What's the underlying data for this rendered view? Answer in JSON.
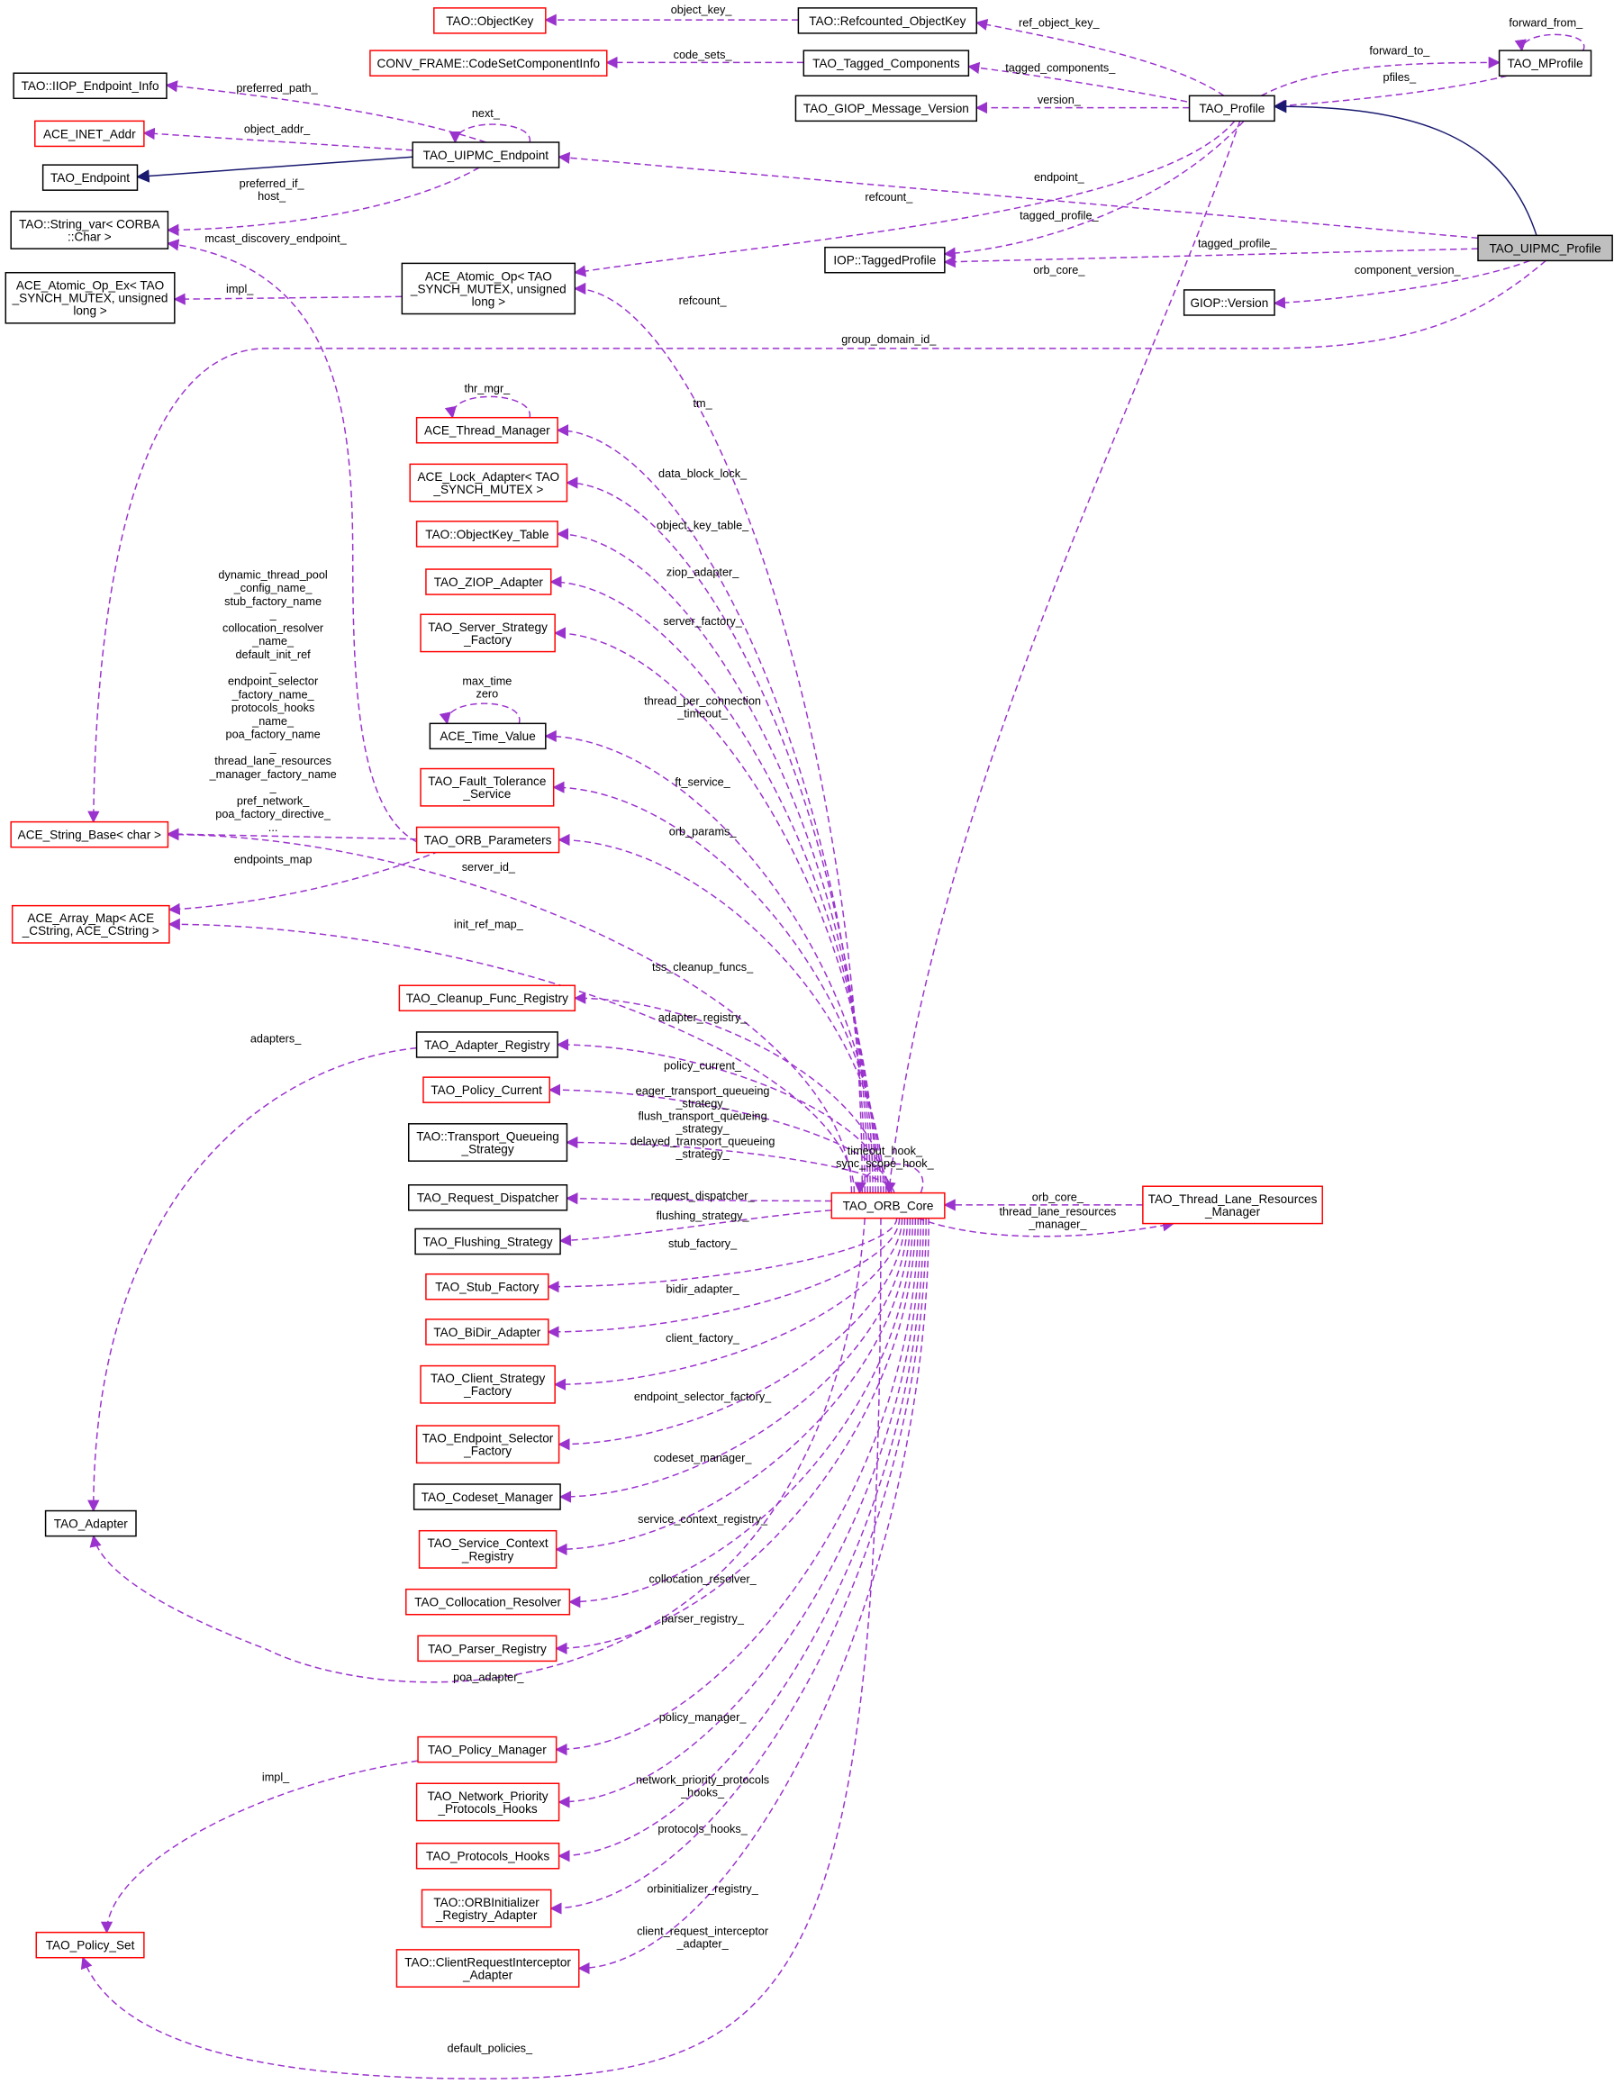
{
  "colors": {
    "red_border": "#ff0000",
    "black_border": "#000000",
    "focus_fill": "#bfbfbf",
    "member_edge": "#9a32cd",
    "inherit_edge": "#191970"
  },
  "nodes": [
    {
      "id": "objectkey",
      "lines": [
        "TAO::ObjectKey"
      ],
      "style": "red"
    },
    {
      "id": "refcounted_objectkey",
      "lines": [
        "TAO::Refcounted_ObjectKey"
      ],
      "style": "black"
    },
    {
      "id": "codeset_info",
      "lines": [
        "CONV_FRAME::CodeSetComponentInfo"
      ],
      "style": "red"
    },
    {
      "id": "tagged_components",
      "lines": [
        "TAO_Tagged_Components"
      ],
      "style": "black"
    },
    {
      "id": "iiop_endpoint_info",
      "lines": [
        "TAO::IIOP_Endpoint_Info"
      ],
      "style": "black"
    },
    {
      "id": "giop_message_version",
      "lines": [
        "TAO_GIOP_Message_Version"
      ],
      "style": "black"
    },
    {
      "id": "tao_profile",
      "lines": [
        "TAO_Profile"
      ],
      "style": "black"
    },
    {
      "id": "tao_mprofile",
      "lines": [
        "TAO_MProfile"
      ],
      "style": "black"
    },
    {
      "id": "ace_inet_addr",
      "lines": [
        "ACE_INET_Addr"
      ],
      "style": "red"
    },
    {
      "id": "uipmc_endpoint",
      "lines": [
        "TAO_UIPMC_Endpoint"
      ],
      "style": "black"
    },
    {
      "id": "tao_endpoint",
      "lines": [
        "TAO_Endpoint"
      ],
      "style": "black"
    },
    {
      "id": "string_var",
      "lines": [
        "TAO::String_var< CORBA",
        "::Char >"
      ],
      "style": "black"
    },
    {
      "id": "iop_tagged_profile",
      "lines": [
        "IOP::TaggedProfile"
      ],
      "style": "black"
    },
    {
      "id": "uipmc_profile",
      "lines": [
        "TAO_UIPMC_Profile"
      ],
      "style": "focus"
    },
    {
      "id": "giop_version",
      "lines": [
        "GIOP::Version"
      ],
      "style": "black"
    },
    {
      "id": "atomic_op_ex",
      "lines": [
        "ACE_Atomic_Op_Ex< TAO",
        "_SYNCH_MUTEX, unsigned",
        "long >"
      ],
      "style": "black"
    },
    {
      "id": "atomic_op",
      "lines": [
        "ACE_Atomic_Op< TAO",
        "_SYNCH_MUTEX, unsigned",
        "long >"
      ],
      "style": "black"
    },
    {
      "id": "thread_manager",
      "lines": [
        "ACE_Thread_Manager"
      ],
      "style": "red"
    },
    {
      "id": "lock_adapter",
      "lines": [
        "ACE_Lock_Adapter< TAO",
        "_SYNCH_MUTEX >"
      ],
      "style": "red"
    },
    {
      "id": "objectkey_table",
      "lines": [
        "TAO::ObjectKey_Table"
      ],
      "style": "red"
    },
    {
      "id": "ziop_adapter",
      "lines": [
        "TAO_ZIOP_Adapter"
      ],
      "style": "red"
    },
    {
      "id": "server_strategy_factory",
      "lines": [
        "TAO_Server_Strategy",
        "_Factory"
      ],
      "style": "red"
    },
    {
      "id": "time_value",
      "lines": [
        "ACE_Time_Value"
      ],
      "style": "black"
    },
    {
      "id": "fault_tolerance",
      "lines": [
        "TAO_Fault_Tolerance",
        "_Service"
      ],
      "style": "red"
    },
    {
      "id": "orb_parameters",
      "lines": [
        "TAO_ORB_Parameters"
      ],
      "style": "red"
    },
    {
      "id": "string_base",
      "lines": [
        "ACE_String_Base< char >"
      ],
      "style": "red"
    },
    {
      "id": "array_map",
      "lines": [
        "ACE_Array_Map< ACE",
        "_CString, ACE_CString >"
      ],
      "style": "red"
    },
    {
      "id": "cleanup_registry",
      "lines": [
        "TAO_Cleanup_Func_Registry"
      ],
      "style": "red"
    },
    {
      "id": "adapter_registry",
      "lines": [
        "TAO_Adapter_Registry"
      ],
      "style": "black"
    },
    {
      "id": "policy_current",
      "lines": [
        "TAO_Policy_Current"
      ],
      "style": "red"
    },
    {
      "id": "transport_queueing",
      "lines": [
        "TAO::Transport_Queueing",
        "_Strategy"
      ],
      "style": "black"
    },
    {
      "id": "request_dispatcher",
      "lines": [
        "TAO_Request_Dispatcher"
      ],
      "style": "black"
    },
    {
      "id": "flushing_strategy",
      "lines": [
        "TAO_Flushing_Strategy"
      ],
      "style": "black"
    },
    {
      "id": "stub_factory",
      "lines": [
        "TAO_Stub_Factory"
      ],
      "style": "red"
    },
    {
      "id": "bidir_adapter",
      "lines": [
        "TAO_BiDir_Adapter"
      ],
      "style": "red"
    },
    {
      "id": "client_strategy_factory",
      "lines": [
        "TAO_Client_Strategy",
        "_Factory"
      ],
      "style": "red"
    },
    {
      "id": "endpoint_selector_factory",
      "lines": [
        "TAO_Endpoint_Selector",
        "_Factory"
      ],
      "style": "red"
    },
    {
      "id": "codeset_manager",
      "lines": [
        "TAO_Codeset_Manager"
      ],
      "style": "black"
    },
    {
      "id": "service_context_registry",
      "lines": [
        "TAO_Service_Context",
        "_Registry"
      ],
      "style": "red"
    },
    {
      "id": "collocation_resolver",
      "lines": [
        "TAO_Collocation_Resolver"
      ],
      "style": "red"
    },
    {
      "id": "parser_registry",
      "lines": [
        "TAO_Parser_Registry"
      ],
      "style": "red"
    },
    {
      "id": "tao_adapter",
      "lines": [
        "TAO_Adapter"
      ],
      "style": "black"
    },
    {
      "id": "policy_manager",
      "lines": [
        "TAO_Policy_Manager"
      ],
      "style": "red"
    },
    {
      "id": "network_priority_hooks",
      "lines": [
        "TAO_Network_Priority",
        "_Protocols_Hooks"
      ],
      "style": "red"
    },
    {
      "id": "protocols_hooks",
      "lines": [
        "TAO_Protocols_Hooks"
      ],
      "style": "red"
    },
    {
      "id": "orbinitializer_registry",
      "lines": [
        "TAO::ORBInitializer",
        "_Registry_Adapter"
      ],
      "style": "red"
    },
    {
      "id": "client_request_interceptor",
      "lines": [
        "TAO::ClientRequestInterceptor",
        "_Adapter"
      ],
      "style": "red"
    },
    {
      "id": "policy_set",
      "lines": [
        "TAO_Policy_Set"
      ],
      "style": "red"
    },
    {
      "id": "orb_core",
      "lines": [
        "TAO_ORB_Core"
      ],
      "style": "red"
    },
    {
      "id": "thread_lane_resources_manager",
      "lines": [
        "TAO_Thread_Lane_Resources",
        "_Manager"
      ],
      "style": "red"
    }
  ],
  "edges": [
    {
      "from": "refcounted_objectkey",
      "to": "objectkey",
      "kind": "member",
      "label": [
        "object_key_"
      ]
    },
    {
      "from": "tagged_components",
      "to": "codeset_info",
      "kind": "member",
      "label": [
        "code_sets_"
      ]
    },
    {
      "from": "tao_profile",
      "to": "refcounted_objectkey",
      "kind": "member",
      "label": [
        "ref_object_key_"
      ]
    },
    {
      "from": "tao_profile",
      "to": "tagged_components",
      "kind": "member",
      "label": [
        "tagged_components_"
      ]
    },
    {
      "from": "tao_profile",
      "to": "giop_message_version",
      "kind": "member",
      "label": [
        "version_"
      ]
    },
    {
      "from": "tao_profile",
      "to": "tao_mprofile",
      "kind": "member",
      "label": [
        "forward_to_"
      ]
    },
    {
      "from": "tao_mprofile",
      "to": "tao_profile",
      "kind": "member",
      "label": [
        "pfiles_"
      ]
    },
    {
      "from": "tao_mprofile",
      "to": "tao_mprofile",
      "kind": "member",
      "label": [
        "forward_from_"
      ]
    },
    {
      "from": "uipmc_profile",
      "to": "tao_profile",
      "kind": "inherit",
      "label": []
    },
    {
      "from": "tao_profile",
      "to": "iop_tagged_profile",
      "kind": "member",
      "label": [
        "tagged_profile_"
      ]
    },
    {
      "from": "uipmc_profile",
      "to": "iop_tagged_profile",
      "kind": "member",
      "label": [
        "tagged_profile_"
      ]
    },
    {
      "from": "tao_profile",
      "to": "atomic_op",
      "kind": "member",
      "label": [
        "refcount_"
      ]
    },
    {
      "from": "uipmc_profile",
      "to": "uipmc_endpoint",
      "kind": "member",
      "label": [
        "endpoint_"
      ]
    },
    {
      "from": "uipmc_profile",
      "to": "giop_version",
      "kind": "member",
      "label": [
        "component_version_"
      ]
    },
    {
      "from": "uipmc_profile",
      "to": "string_base",
      "kind": "member",
      "label": [
        "group_domain_id_"
      ]
    },
    {
      "from": "tao_profile",
      "to": "orb_core",
      "kind": "member",
      "label": [
        "orb_core_"
      ]
    },
    {
      "from": "uipmc_endpoint",
      "to": "iiop_endpoint_info",
      "kind": "member",
      "label": [
        "preferred_path_"
      ]
    },
    {
      "from": "uipmc_endpoint",
      "to": "ace_inet_addr",
      "kind": "member",
      "label": [
        "object_addr_"
      ]
    },
    {
      "from": "uipmc_endpoint",
      "to": "tao_endpoint",
      "kind": "inherit",
      "label": []
    },
    {
      "from": "uipmc_endpoint",
      "to": "uipmc_endpoint",
      "kind": "member",
      "label": [
        "next_"
      ]
    },
    {
      "from": "uipmc_endpoint",
      "to": "string_var",
      "kind": "member",
      "label": [
        "preferred_if_",
        "host_"
      ]
    },
    {
      "from": "orb_parameters",
      "to": "string_var",
      "kind": "member",
      "label": [
        "mcast_discovery_endpoint_"
      ]
    },
    {
      "from": "atomic_op",
      "to": "atomic_op_ex",
      "kind": "member",
      "label": [
        "impl_"
      ]
    },
    {
      "from": "orb_core",
      "to": "atomic_op",
      "kind": "member",
      "label": [
        "refcount_"
      ]
    },
    {
      "from": "orb_core",
      "to": "thread_manager",
      "kind": "member",
      "label": [
        "tm_"
      ]
    },
    {
      "from": "thread_manager",
      "to": "thread_manager",
      "kind": "member",
      "label": [
        "thr_mgr_"
      ]
    },
    {
      "from": "orb_core",
      "to": "lock_adapter",
      "kind": "member",
      "label": [
        "data_block_lock_"
      ]
    },
    {
      "from": "orb_core",
      "to": "objectkey_table",
      "kind": "member",
      "label": [
        "object_key_table_"
      ]
    },
    {
      "from": "orb_core",
      "to": "ziop_adapter",
      "kind": "member",
      "label": [
        "ziop_adapter_"
      ]
    },
    {
      "from": "orb_core",
      "to": "server_strategy_factory",
      "kind": "member",
      "label": [
        "server_factory_"
      ]
    },
    {
      "from": "orb_core",
      "to": "time_value",
      "kind": "member",
      "label": [
        "thread_per_connection",
        "_timeout_"
      ]
    },
    {
      "from": "time_value",
      "to": "time_value",
      "kind": "member",
      "label": [
        "max_time",
        "zero"
      ]
    },
    {
      "from": "orb_core",
      "to": "fault_tolerance",
      "kind": "member",
      "label": [
        "ft_service_"
      ]
    },
    {
      "from": "orb_core",
      "to": "orb_parameters",
      "kind": "member",
      "label": [
        "orb_params_"
      ]
    },
    {
      "from": "orb_parameters",
      "to": "string_base",
      "kind": "member",
      "label": [
        "dynamic_thread_pool",
        "_config_name_",
        "stub_factory_name",
        "_",
        "collocation_resolver",
        "_name_",
        "default_init_ref",
        "_",
        "endpoint_selector",
        "_factory_name_",
        "protocols_hooks",
        "_name_",
        "poa_factory_name",
        "_",
        "thread_lane_resources",
        "_manager_factory_name",
        "_",
        "pref_network_",
        "poa_factory_directive_",
        "..."
      ]
    },
    {
      "from": "orb_parameters",
      "to": "array_map",
      "kind": "member",
      "label": [
        "endpoints_map"
      ]
    },
    {
      "from": "orb_core",
      "to": "string_base",
      "kind": "member",
      "label": [
        "server_id_"
      ]
    },
    {
      "from": "orb_core",
      "to": "array_map",
      "kind": "member",
      "label": [
        "init_ref_map_"
      ]
    },
    {
      "from": "orb_core",
      "to": "cleanup_registry",
      "kind": "member",
      "label": [
        "tss_cleanup_funcs_"
      ]
    },
    {
      "from": "orb_core",
      "to": "adapter_registry",
      "kind": "member",
      "label": [
        "adapter_registry_"
      ]
    },
    {
      "from": "adapter_registry",
      "to": "tao_adapter",
      "kind": "member",
      "label": [
        "adapters_"
      ]
    },
    {
      "from": "orb_core",
      "to": "policy_current",
      "kind": "member",
      "label": [
        "policy_current_"
      ]
    },
    {
      "from": "orb_core",
      "to": "transport_queueing",
      "kind": "member",
      "label": [
        "eager_transport_queueing",
        "_strategy_",
        "flush_transport_queueing",
        "_strategy_",
        "delayed_transport_queueing",
        "_strategy_"
      ]
    },
    {
      "from": "orb_core",
      "to": "orb_core",
      "kind": "member",
      "label": [
        "timeout_hook_",
        "sync_scope_hook_"
      ]
    },
    {
      "from": "orb_core",
      "to": "request_dispatcher",
      "kind": "member",
      "label": [
        "request_dispatcher_"
      ]
    },
    {
      "from": "orb_core",
      "to": "flushing_strategy",
      "kind": "member",
      "label": [
        "flushing_strategy_"
      ]
    },
    {
      "from": "thread_lane_resources_manager",
      "to": "orb_core",
      "kind": "member",
      "label": [
        "orb_core_"
      ]
    },
    {
      "from": "orb_core",
      "to": "thread_lane_resources_manager",
      "kind": "member",
      "label": [
        "thread_lane_resources",
        "_manager_"
      ]
    },
    {
      "from": "orb_core",
      "to": "stub_factory",
      "kind": "member",
      "label": [
        "stub_factory_"
      ]
    },
    {
      "from": "orb_core",
      "to": "bidir_adapter",
      "kind": "member",
      "label": [
        "bidir_adapter_"
      ]
    },
    {
      "from": "orb_core",
      "to": "client_strategy_factory",
      "kind": "member",
      "label": [
        "client_factory_"
      ]
    },
    {
      "from": "orb_core",
      "to": "endpoint_selector_factory",
      "kind": "member",
      "label": [
        "endpoint_selector_factory_"
      ]
    },
    {
      "from": "orb_core",
      "to": "codeset_manager",
      "kind": "member",
      "label": [
        "codeset_manager_"
      ]
    },
    {
      "from": "orb_core",
      "to": "service_context_registry",
      "kind": "member",
      "label": [
        "service_context_registry_"
      ]
    },
    {
      "from": "orb_core",
      "to": "collocation_resolver",
      "kind": "member",
      "label": [
        "collocation_resolver_"
      ]
    },
    {
      "from": "orb_core",
      "to": "parser_registry",
      "kind": "member",
      "label": [
        "parser_registry_"
      ]
    },
    {
      "from": "orb_core",
      "to": "tao_adapter",
      "kind": "member",
      "label": [
        "poa_adapter_"
      ]
    },
    {
      "from": "orb_core",
      "to": "policy_manager",
      "kind": "member",
      "label": [
        "policy_manager_"
      ]
    },
    {
      "from": "policy_manager",
      "to": "policy_set",
      "kind": "member",
      "label": [
        "impl_"
      ]
    },
    {
      "from": "orb_core",
      "to": "network_priority_hooks",
      "kind": "member",
      "label": [
        "network_priority_protocols",
        "_hooks_"
      ]
    },
    {
      "from": "orb_core",
      "to": "protocols_hooks",
      "kind": "member",
      "label": [
        "protocols_hooks_"
      ]
    },
    {
      "from": "orb_core",
      "to": "orbinitializer_registry",
      "kind": "member",
      "label": [
        "orbinitializer_registry_"
      ]
    },
    {
      "from": "orb_core",
      "to": "client_request_interceptor",
      "kind": "member",
      "label": [
        "client_request_interceptor",
        "_adapter_"
      ]
    },
    {
      "from": "orb_core",
      "to": "policy_set",
      "kind": "member",
      "label": [
        "default_policies_"
      ]
    }
  ]
}
